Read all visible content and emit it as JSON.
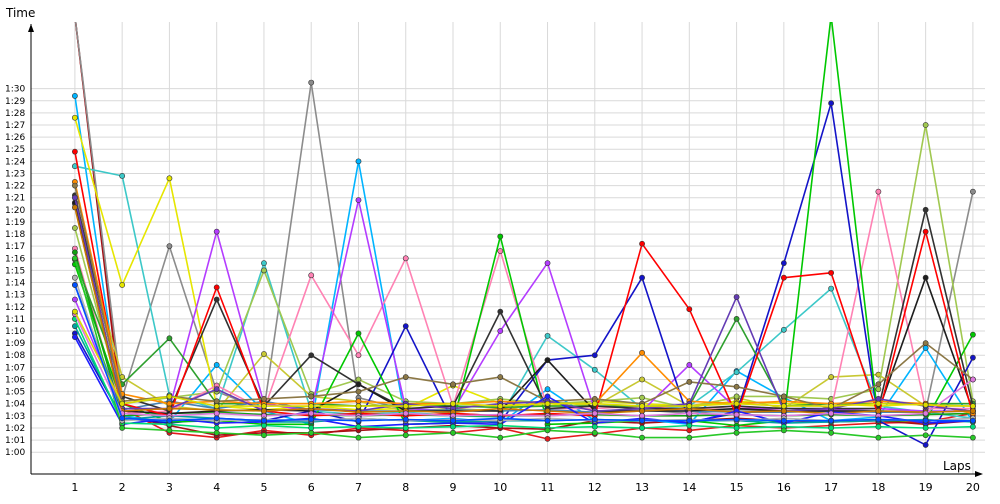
{
  "chart_data": {
    "type": "line",
    "ylabel": "Time",
    "xlabel": "Laps",
    "x": [
      1,
      2,
      3,
      4,
      5,
      6,
      7,
      8,
      9,
      10,
      11,
      12,
      13,
      14,
      15,
      16,
      17,
      18,
      19,
      20
    ],
    "xlim": [
      0.05,
      20.15
    ],
    "ylim": [
      58.2,
      95.5
    ],
    "grid": true,
    "y_tick_values": [
      60,
      61,
      62,
      63,
      64,
      65,
      66,
      67,
      68,
      69,
      70,
      71,
      72,
      73,
      74,
      75,
      76,
      77,
      78,
      79,
      80,
      81,
      82,
      83,
      84,
      85,
      86,
      87,
      88,
      89,
      90
    ],
    "y_tick_labels": [
      "1:00",
      "1:01",
      "1:02",
      "1:03",
      "1:04",
      "1:05",
      "1:06",
      "1:07",
      "1:08",
      "1:09",
      "1:10",
      "1:11",
      "1:12",
      "1:13",
      "1:14",
      "1:15",
      "1:16",
      "1:17",
      "1:18",
      "1:19",
      "1:20",
      "1:21",
      "1:22",
      "1:23",
      "1:24",
      "1:25",
      "1:26",
      "1:27",
      "1:28",
      "1:29",
      "1:30"
    ],
    "x_tick_labels": [
      "1",
      "2",
      "3",
      "4",
      "5",
      "6",
      "7",
      "8",
      "9",
      "10",
      "11",
      "12",
      "13",
      "14",
      "15",
      "16",
      "17",
      "18",
      "19",
      "20"
    ],
    "series": [
      {
        "color": "#e41a1c",
        "values": [
          96,
          63.6,
          61.6,
          61.2,
          61.8,
          61.4,
          62.0,
          61.8,
          61.6,
          62.0,
          61.1,
          61.5,
          62.0,
          61.8,
          62.2,
          62.0,
          62.2,
          62.4,
          62.5,
          63.2
        ]
      },
      {
        "color": "#a50f15",
        "values": [
          96,
          63.0,
          62.2,
          61.4,
          61.6,
          61.6,
          61.8,
          62.0,
          62.2,
          62.0,
          61.9,
          62.6,
          62.4,
          62.6,
          62.8,
          62.6,
          62.5,
          62.6,
          62.3,
          62.6
        ]
      },
      {
        "color": "#8c8c8c",
        "values": [
          96,
          64.5,
          77.0,
          65.0,
          63.5,
          90.5,
          64.5,
          63.5,
          63.2,
          63.0,
          63.0,
          63.2,
          63.5,
          63.2,
          63.5,
          63.4,
          63.4,
          63.4,
          63.4,
          81.5
        ]
      },
      {
        "color": "#00b4ff",
        "values": [
          89.4,
          63.0,
          62.5,
          67.2,
          63.4,
          62.3,
          84.0,
          62.6,
          62.8,
          62.4,
          65.2,
          62.6,
          62.7,
          62.3,
          66.7,
          64.5,
          62.6,
          62.9,
          68.6,
          62.5
        ]
      },
      {
        "color": "#3cc8c8",
        "values": [
          83.6,
          82.8,
          64.7,
          63.6,
          75.6,
          63.4,
          63.1,
          63.3,
          63.0,
          62.9,
          69.6,
          66.8,
          63.6,
          63.8,
          66.6,
          70.1,
          73.5,
          63.8,
          63.3,
          62.8
        ]
      },
      {
        "color": "#e6e600",
        "values": [
          87.6,
          73.8,
          82.6,
          63.8,
          63.5,
          63.8,
          63.5,
          63.6,
          65.5,
          64.0,
          63.8,
          64.2,
          64.0,
          63.8,
          64.2,
          64.0,
          64.0,
          63.8,
          64.0,
          64.0
        ]
      },
      {
        "color": "#c8c832",
        "values": [
          80.5,
          66.2,
          63.8,
          63.4,
          68.1,
          64.6,
          64.2,
          63.4,
          63.6,
          63.4,
          64.2,
          63.8,
          66.0,
          63.8,
          64.5,
          63.6,
          66.2,
          66.4,
          63.8,
          63.8
        ]
      },
      {
        "color": "#a0c850",
        "values": [
          78.5,
          64.0,
          64.5,
          65.0,
          75.0,
          64.8,
          66.0,
          64.2,
          64.0,
          64.4,
          64.0,
          64.2,
          64.5,
          63.6,
          64.6,
          64.6,
          64.4,
          65.2,
          87.0,
          64.2
        ]
      },
      {
        "color": "#ff82b4",
        "values": [
          76.8,
          63.2,
          63.4,
          65.5,
          63.5,
          74.6,
          68.0,
          76.0,
          63.8,
          76.6,
          63.6,
          63.6,
          63.8,
          63.5,
          63.8,
          63.4,
          63.5,
          81.5,
          63.6,
          63.6
        ]
      },
      {
        "color": "#b43cff",
        "values": [
          72.6,
          63.4,
          63.6,
          78.2,
          64.0,
          63.4,
          80.8,
          63.6,
          63.4,
          70.0,
          75.6,
          63.4,
          63.4,
          67.2,
          63.6,
          63.6,
          63.5,
          63.6,
          63.4,
          63.4
        ]
      },
      {
        "color": "#1414c8",
        "values": [
          69.8,
          62.8,
          62.4,
          62.8,
          62.6,
          63.4,
          62.5,
          70.4,
          62.5,
          62.5,
          67.6,
          68.0,
          74.4,
          62.5,
          63.2,
          75.6,
          88.8,
          62.6,
          60.6,
          67.8
        ]
      },
      {
        "color": "#00c800",
        "values": [
          75.5,
          64.0,
          62.5,
          62.6,
          62.3,
          62.3,
          69.8,
          62.3,
          62.4,
          77.8,
          62.3,
          62.4,
          62.6,
          62.6,
          62.2,
          62.6,
          96,
          62.6,
          62.6,
          69.7
        ]
      },
      {
        "color": "#14a014",
        "values": [
          76.5,
          63.0,
          63.2,
          63.3,
          63.1,
          63.1,
          63.0,
          63.1,
          63.0,
          63.0,
          63.1,
          63.1,
          63.0,
          63.0,
          63.1,
          63.0,
          63.1,
          63.0,
          63.1,
          63.2
        ]
      },
      {
        "color": "#2ea02e",
        "values": [
          75.9,
          65.6,
          69.4,
          64.0,
          64.0,
          64.0,
          63.8,
          63.9,
          63.8,
          63.7,
          63.8,
          63.8,
          63.8,
          63.8,
          71.0,
          63.8,
          64.0,
          64.0,
          64.0,
          64.0
        ]
      },
      {
        "color": "#4682b4",
        "values": [
          73.8,
          63.5,
          64.2,
          63.6,
          64.2,
          63.5,
          63.4,
          63.4,
          63.5,
          63.4,
          63.5,
          63.3,
          63.4,
          63.4,
          63.3,
          63.3,
          63.4,
          63.3,
          63.3,
          63.4
        ]
      },
      {
        "color": "#323232",
        "values": [
          81.2,
          64.6,
          63.4,
          72.6,
          63.8,
          68.0,
          65.6,
          63.6,
          63.8,
          71.6,
          63.6,
          63.8,
          63.6,
          63.6,
          63.8,
          63.6,
          63.6,
          63.6,
          80.0,
          63.8
        ]
      },
      {
        "color": "#1e1e1e",
        "values": [
          80.6,
          63.4,
          63.2,
          63.4,
          63.5,
          63.4,
          65.6,
          63.4,
          63.4,
          63.4,
          67.6,
          63.4,
          63.4,
          63.4,
          63.6,
          63.4,
          63.4,
          63.4,
          74.4,
          63.4
        ]
      },
      {
        "color": "#ff0000",
        "values": [
          84.8,
          64.0,
          63.0,
          73.6,
          63.4,
          63.0,
          63.2,
          63.0,
          63.2,
          63.0,
          63.2,
          63.0,
          77.2,
          71.8,
          63.0,
          74.4,
          74.8,
          63.0,
          78.2,
          63.0
        ]
      },
      {
        "color": "#ff8c00",
        "values": [
          82.3,
          64.8,
          64.0,
          64.2,
          64.0,
          64.0,
          64.2,
          64.0,
          64.0,
          64.2,
          64.0,
          64.0,
          68.2,
          64.2,
          64.0,
          64.2,
          64.0,
          64.2,
          64.0,
          63.2
        ]
      },
      {
        "color": "#8c7846",
        "values": [
          82.0,
          64.2,
          64.6,
          64.2,
          64.4,
          64.6,
          65.0,
          66.2,
          65.6,
          66.2,
          64.2,
          64.4,
          64.0,
          65.8,
          65.4,
          64.6,
          63.6,
          65.6,
          69.0,
          66.0
        ]
      },
      {
        "color": "#643cb4",
        "values": [
          81.0,
          63.6,
          63.6,
          65.2,
          63.4,
          63.6,
          63.4,
          64.0,
          63.6,
          64.0,
          64.2,
          63.4,
          63.6,
          64.0,
          72.8,
          63.4,
          63.6,
          64.4,
          63.8,
          63.4
        ]
      },
      {
        "color": "#c87800",
        "values": [
          80.2,
          63.4,
          63.6,
          63.5,
          63.4,
          63.6,
          63.3,
          63.4,
          63.3,
          63.6,
          63.4,
          63.2,
          63.4,
          63.6,
          63.3,
          63.4,
          63.2,
          63.4,
          63.3,
          63.4
        ]
      },
      {
        "color": "#00a0a0",
        "values": [
          70.4,
          62.7,
          63.0,
          62.8,
          62.5,
          62.5,
          62.8,
          62.6,
          62.5,
          62.6,
          62.6,
          62.7,
          62.6,
          62.6,
          62.6,
          62.4,
          62.5,
          62.6,
          62.7,
          62.5
        ]
      },
      {
        "color": "#1e1eff",
        "values": [
          69.5,
          62.3,
          62.8,
          62.4,
          62.5,
          62.8,
          62.1,
          62.3,
          62.4,
          62.3,
          64.6,
          62.4,
          62.8,
          62.4,
          63.4,
          62.4,
          63.3,
          63.0,
          62.4,
          62.6
        ]
      },
      {
        "color": "#00dc78",
        "values": [
          71.0,
          62.4,
          62.3,
          62.0,
          62.2,
          62.0,
          62.1,
          62.0,
          62.1,
          62.2,
          62.0,
          62.1,
          62.0,
          62.2,
          62.0,
          62.1,
          62.0,
          62.1,
          62.0,
          62.1
        ]
      },
      {
        "color": "#28c828",
        "values": [
          76.0,
          62.0,
          61.8,
          61.6,
          61.4,
          61.6,
          61.2,
          61.4,
          61.6,
          61.2,
          61.8,
          61.6,
          61.2,
          61.2,
          61.6,
          61.8,
          61.6,
          61.2,
          61.4,
          61.2
        ]
      },
      {
        "color": "#dc78dc",
        "values": [
          71.4,
          63.2,
          63.0,
          63.2,
          63.0,
          63.2,
          63.0,
          63.2,
          63.0,
          63.1,
          63.0,
          63.2,
          63.0,
          63.2,
          63.1,
          63.0,
          63.2,
          63.0,
          63.2,
          66.0
        ]
      },
      {
        "color": "#b4b4b4",
        "values": [
          74.4,
          62.6,
          62.8,
          62.6,
          62.7,
          62.6,
          62.8,
          62.6,
          62.7,
          62.6,
          62.8,
          62.6,
          62.6,
          62.7,
          62.6,
          62.8,
          62.6,
          62.7,
          62.6,
          62.8
        ]
      },
      {
        "color": "#dcdc00",
        "values": [
          71.6,
          64.0,
          64.6,
          63.8,
          63.8,
          63.8,
          63.8,
          63.8,
          64.0,
          63.8,
          64.0,
          64.0,
          63.8,
          63.8,
          64.0,
          63.8,
          63.8,
          64.0,
          63.9,
          63.8
        ]
      },
      {
        "color": "#0050ff",
        "values": [
          73.8,
          62.8,
          62.6,
          62.8,
          62.6,
          62.7,
          62.6,
          62.7,
          62.6,
          62.8,
          62.6,
          62.7,
          62.6,
          62.6,
          62.7,
          62.6,
          62.6,
          62.7,
          62.6,
          62.6
        ]
      }
    ]
  }
}
